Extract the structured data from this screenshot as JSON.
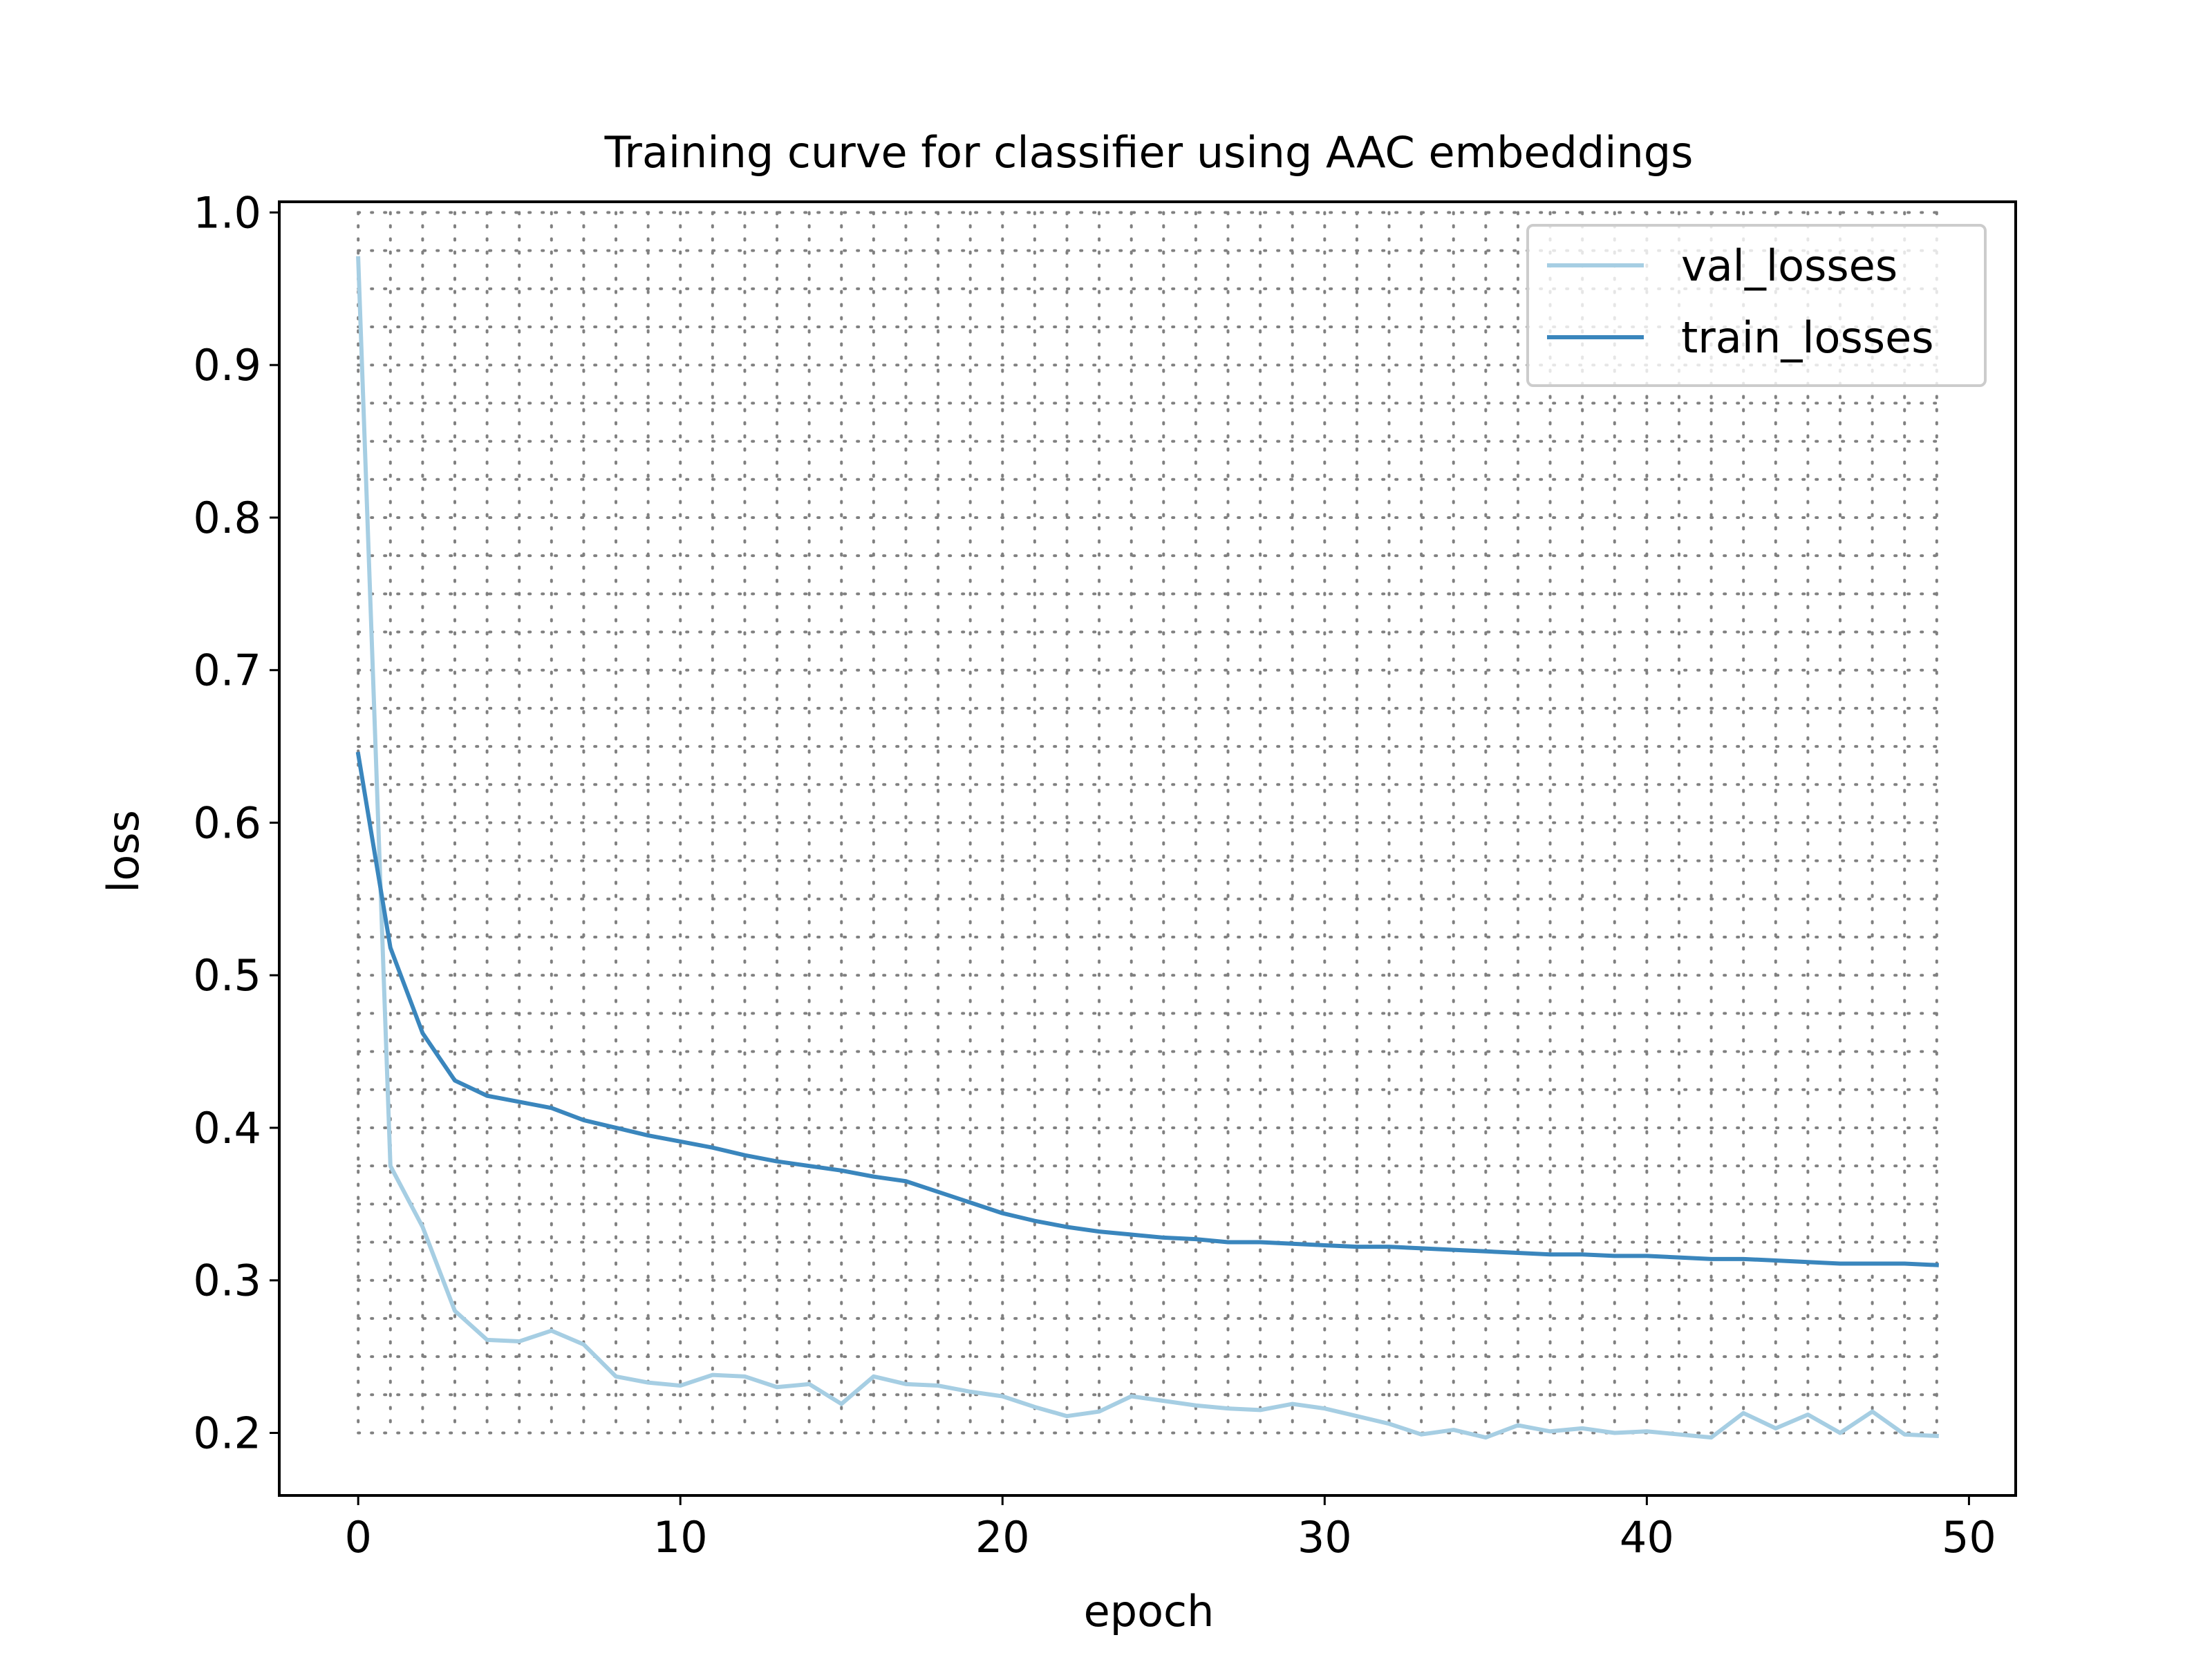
{
  "chart_data": {
    "type": "line",
    "title": "Training curve for classifier using AAC embeddings",
    "xlabel": "epoch",
    "ylabel": "loss",
    "xlim": [
      -2.45,
      51.45
    ],
    "ylim": [
      0.159,
      1.007
    ],
    "xticks": [
      0,
      10,
      20,
      30,
      40,
      50
    ],
    "yticks": [
      0.2,
      0.3,
      0.4,
      0.5,
      0.6,
      0.7,
      0.8,
      0.9,
      1.0
    ],
    "xtick_labels": [
      "0",
      "10",
      "20",
      "30",
      "40",
      "50"
    ],
    "ytick_labels": [
      "0.2",
      "0.3",
      "0.4",
      "0.5",
      "0.6",
      "0.7",
      "0.8",
      "0.9",
      "1.0"
    ],
    "grid": "dotted",
    "legend_position": "upper right",
    "x": [
      0,
      1,
      2,
      3,
      4,
      5,
      6,
      7,
      8,
      9,
      10,
      11,
      12,
      13,
      14,
      15,
      16,
      17,
      18,
      19,
      20,
      21,
      22,
      23,
      24,
      25,
      26,
      27,
      28,
      29,
      30,
      31,
      32,
      33,
      34,
      35,
      36,
      37,
      38,
      39,
      40,
      41,
      42,
      43,
      44,
      45,
      46,
      47,
      48,
      49
    ],
    "series": [
      {
        "name": "val_losses",
        "color": "#a6cee3",
        "values": [
          0.97,
          0.375,
          0.335,
          0.28,
          0.261,
          0.26,
          0.267,
          0.258,
          0.237,
          0.233,
          0.231,
          0.238,
          0.237,
          0.23,
          0.232,
          0.219,
          0.237,
          0.232,
          0.231,
          0.227,
          0.224,
          0.217,
          0.211,
          0.214,
          0.224,
          0.221,
          0.218,
          0.216,
          0.215,
          0.219,
          0.216,
          0.211,
          0.206,
          0.199,
          0.202,
          0.197,
          0.205,
          0.201,
          0.203,
          0.2,
          0.201,
          0.199,
          0.197,
          0.213,
          0.203,
          0.212,
          0.2,
          0.214,
          0.199,
          0.198
        ]
      },
      {
        "name": "train_losses",
        "color": "#3a86bd",
        "values": [
          0.645,
          0.518,
          0.462,
          0.431,
          0.421,
          0.417,
          0.413,
          0.405,
          0.4,
          0.395,
          0.391,
          0.387,
          0.382,
          0.378,
          0.375,
          0.372,
          0.368,
          0.365,
          0.358,
          0.351,
          0.344,
          0.339,
          0.335,
          0.332,
          0.33,
          0.328,
          0.327,
          0.325,
          0.325,
          0.324,
          0.323,
          0.322,
          0.322,
          0.321,
          0.32,
          0.319,
          0.318,
          0.317,
          0.317,
          0.316,
          0.316,
          0.315,
          0.314,
          0.314,
          0.313,
          0.312,
          0.311,
          0.311,
          0.311,
          0.31
        ]
      }
    ]
  }
}
